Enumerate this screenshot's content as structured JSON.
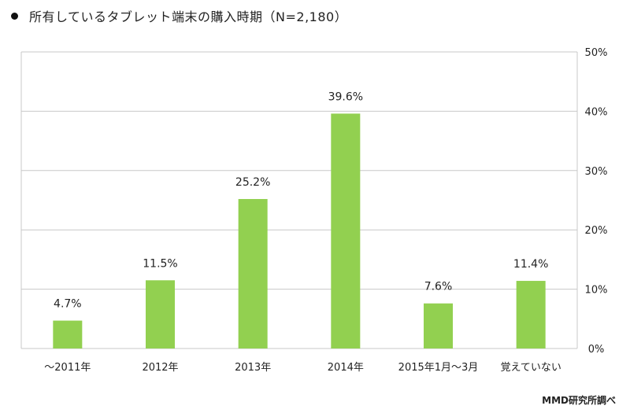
{
  "chart_data": {
    "type": "bar",
    "title": "所有しているタブレット端末の購入時期（N=2,180）",
    "categories": [
      "～2011年",
      "2012年",
      "2013年",
      "2014年",
      "2015年1月～3月",
      "覚えていない"
    ],
    "values": [
      4.7,
      11.5,
      25.2,
      39.6,
      7.6,
      11.4
    ],
    "data_labels": [
      "4.7%",
      "11.5%",
      "25.2%",
      "39.6%",
      "7.6%",
      "11.4%"
    ],
    "ylim": [
      0,
      50
    ],
    "y_ticks": [
      0,
      10,
      20,
      30,
      40,
      50
    ],
    "y_tick_labels": [
      "0%",
      "10%",
      "20%",
      "30%",
      "40%",
      "50%"
    ],
    "y_axis_side": "right",
    "grid": true,
    "bar_color": "#92d050",
    "grid_color": "#c8c8c8"
  },
  "source": "MMD研究所調べ"
}
